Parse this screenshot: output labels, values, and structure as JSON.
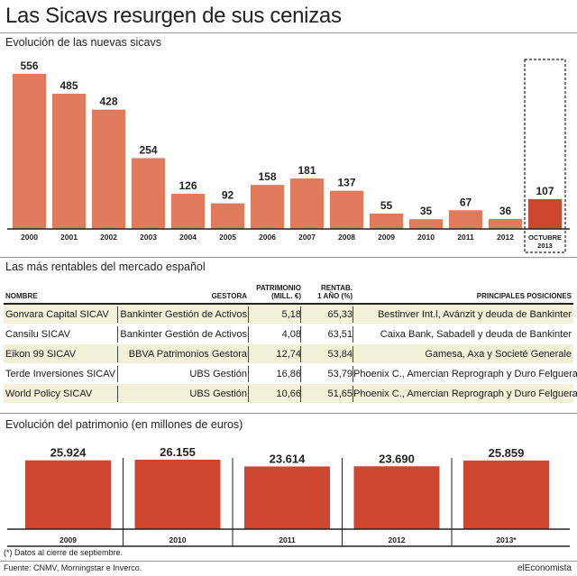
{
  "title": "Las Sicavs resurgen de sus cenizas",
  "section1": {
    "subtitle": "Evolución de las nuevas sicavs"
  },
  "section2": {
    "subtitle": "Las más rentables del mercado español"
  },
  "section3": {
    "subtitle": "Evolución del patrimonio  (en millones de euros)"
  },
  "colors": {
    "bar": "#e07a5c",
    "highlight": "#cf4630",
    "table_band": "#f3f0d8"
  },
  "chart_data": [
    {
      "type": "bar",
      "title": "Evolución de las nuevas sicavs",
      "categories": [
        "2000",
        "2001",
        "2002",
        "2003",
        "2004",
        "2005",
        "2006",
        "2007",
        "2008",
        "2009",
        "2010",
        "2011",
        "2012",
        "OCTUBRE 2013"
      ],
      "values": [
        556,
        485,
        428,
        254,
        126,
        92,
        158,
        181,
        137,
        55,
        35,
        67,
        36,
        107
      ],
      "value_labels": [
        "556",
        "485",
        "428",
        "254",
        "126",
        "92",
        "158",
        "181",
        "137",
        "55",
        "35",
        "67",
        "36",
        "107"
      ],
      "highlight_label": [
        "OCTUBRE",
        "2013"
      ],
      "ylim": [
        0,
        556
      ],
      "grid": false,
      "legend": "none"
    },
    {
      "type": "table",
      "title": "Las más rentables del mercado español",
      "columns": [
        "NOMBRE",
        "GESTORA",
        [
          "PATRIMONIO",
          "(MILL. €)"
        ],
        [
          "RENTAB.",
          "1 AÑO (%)"
        ],
        "PRINCIPALES POSICIONES"
      ],
      "rows": [
        [
          "Gonvara Capital SICAV",
          "Bankinter Gestión de Activos",
          "5,18",
          "65,33",
          "Bestinver Int.l, Avánzit y deuda de Bankinter"
        ],
        [
          "Cansilu SICAV",
          "Bankinter Gestión de Activos",
          "4,08",
          "63,51",
          "Caixa Bank, Sabadell y deuda de Bankinter"
        ],
        [
          "Eikon 99 SICAV",
          "BBVA Patrimonios Gestora",
          "12,74",
          "53,84",
          "Gamesa, Axa y Societé Generale"
        ],
        [
          "Terde Inversiones SICAV",
          "UBS Gestión",
          "16,86",
          "53,79",
          "Phoenix C., Amercian Reprograph y Duro Felguera"
        ],
        [
          "World Policy SICAV",
          "UBS Gestión",
          "10,66",
          "51,65",
          "Phoenix C., Amercian Reprograph y Duro Felguera"
        ]
      ]
    },
    {
      "type": "bar",
      "title": "Evolución del patrimonio  (en millones de euros)",
      "categories": [
        "2009",
        "2010",
        "2011",
        "2012",
        "2013*"
      ],
      "values": [
        25924,
        26155,
        23614,
        23690,
        25859
      ],
      "value_labels": [
        "25.924",
        "26.155",
        "23.614",
        "23.690",
        "25.859"
      ],
      "ylim": [
        0,
        26155
      ],
      "grid": false,
      "legend": "none"
    }
  ],
  "footnote": "(*) Datos al cierre de septiembre.",
  "source": "Fuente: CNMV, Morningstar e Inverco.",
  "brand": "elEconomista"
}
